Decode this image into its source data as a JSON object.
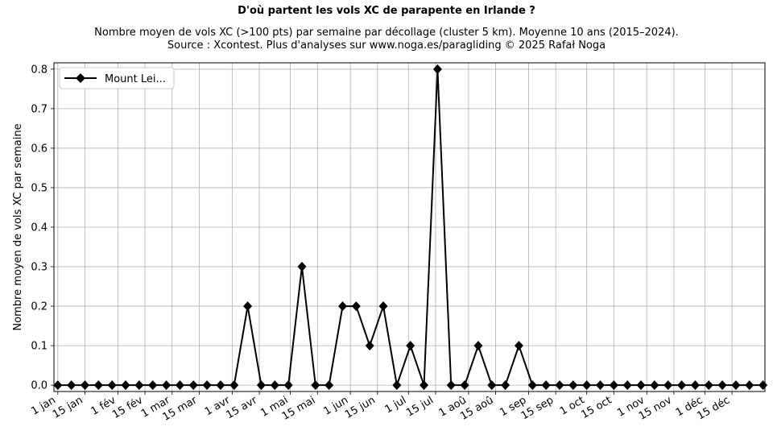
{
  "chart_data": {
    "type": "line",
    "title": "D'où partent les vols XC de parapente en Irlande ?",
    "subtitle_lines": [
      "Nombre moyen de vols XC (>100 pts) par semaine par décollage (cluster 5 km). Moyenne 10 ans (2015–2024).",
      "Source : Xcontest. Plus d'analyses sur www.noga.es/paragliding © 2025 Rafał Noga"
    ],
    "xlabel": "",
    "ylabel": "Nombre moyen de vols XC par semaine",
    "x_unit": "day of year",
    "xlim": [
      -2,
      365
    ],
    "ylim": [
      -0.016,
      0.816
    ],
    "grid": true,
    "legend_position": "top-left",
    "x_ticks": [
      {
        "label": "1 jan",
        "day": 0
      },
      {
        "label": "15 jan",
        "day": 14
      },
      {
        "label": "1 fév",
        "day": 31
      },
      {
        "label": "15 fév",
        "day": 45
      },
      {
        "label": "1 mar",
        "day": 59
      },
      {
        "label": "15 mar",
        "day": 73
      },
      {
        "label": "1 avr",
        "day": 90
      },
      {
        "label": "15 avr",
        "day": 104
      },
      {
        "label": "1 mai",
        "day": 120
      },
      {
        "label": "15 mai",
        "day": 134
      },
      {
        "label": "1 jun",
        "day": 151
      },
      {
        "label": "15 jun",
        "day": 165
      },
      {
        "label": "1 jul",
        "day": 181
      },
      {
        "label": "15 jul",
        "day": 195
      },
      {
        "label": "1 aoû",
        "day": 212
      },
      {
        "label": "15 aoû",
        "day": 226
      },
      {
        "label": "1 sep",
        "day": 243
      },
      {
        "label": "15 sep",
        "day": 257
      },
      {
        "label": "1 oct",
        "day": 273
      },
      {
        "label": "15 oct",
        "day": 287
      },
      {
        "label": "1 nov",
        "day": 304
      },
      {
        "label": "15 nov",
        "day": 318
      },
      {
        "label": "1 déc",
        "day": 334
      },
      {
        "label": "15 déc",
        "day": 348
      }
    ],
    "y_ticks": [
      "0.0",
      "0.1",
      "0.2",
      "0.3",
      "0.4",
      "0.5",
      "0.6",
      "0.7",
      "0.8"
    ],
    "series": [
      {
        "name": "Mount Lei...",
        "color": "#000000",
        "marker": "diamond",
        "x_step_days": 7,
        "values": [
          0,
          0,
          0,
          0,
          0,
          0,
          0,
          0,
          0,
          0,
          0,
          0,
          0,
          0,
          0.2,
          0,
          0,
          0,
          0.3,
          0,
          0,
          0.2,
          0.2,
          0.1,
          0.2,
          0,
          0.1,
          0,
          0.8,
          0,
          0,
          0.1,
          0,
          0,
          0.1,
          0,
          0,
          0,
          0,
          0,
          0,
          0,
          0,
          0,
          0,
          0,
          0,
          0,
          0,
          0,
          0,
          0,
          0
        ]
      }
    ]
  }
}
